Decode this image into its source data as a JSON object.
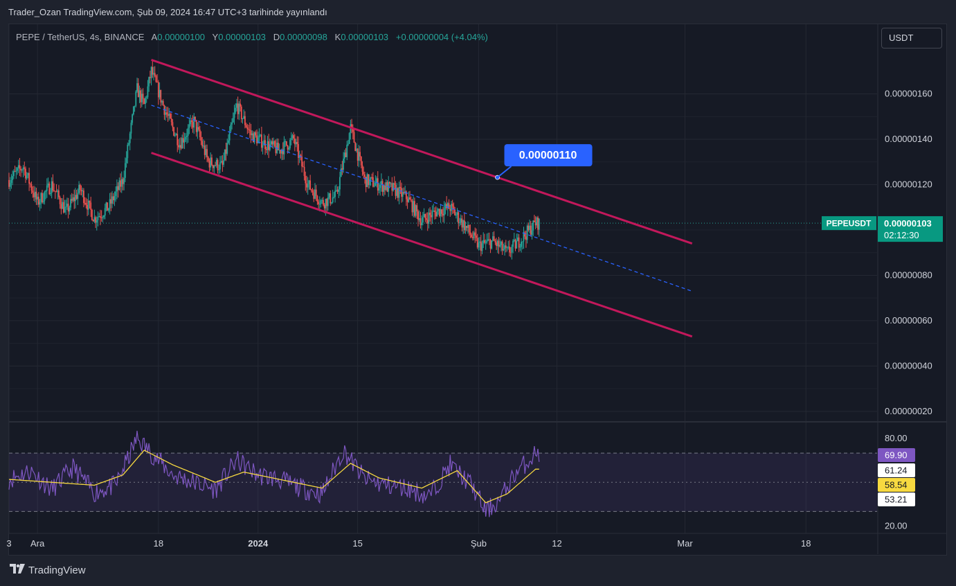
{
  "caption": "Trader_Ozan TradingView.com, Şub 09, 2024 16:47 UTC+3 tarihinde yayınlandı",
  "legend": {
    "symbol": "PEPE / TetherUS, 4s, BINANCE",
    "open_label": "A",
    "open": "0.00000100",
    "high_label": "Y",
    "high": "0.00000103",
    "low_label": "D",
    "low": "0.00000098",
    "close_label": "K",
    "close": "0.00000103",
    "change": "+0.00000004 (+4.04%)"
  },
  "currency_button": "USDT",
  "brand": "TradingView",
  "colors": {
    "up": "#26a69a",
    "down": "#ef5350",
    "channel": "#c2185b",
    "midline": "#2962ff",
    "rsi": "#7e57c2",
    "rsi_ma": "#f7d940",
    "label_blue": "#2962ff",
    "price_tag": "#089981"
  },
  "chart_data": [
    {
      "type": "candlestick",
      "symbol_tag": "PEPEUSDT",
      "last_price": "0.00000103",
      "countdown": "02:12:30",
      "annotation": "0.00000110",
      "y_ticks": [
        "0.00000160",
        "0.00000140",
        "0.00000120",
        "0.00000080",
        "0.00000060",
        "0.00000040",
        "0.00000020"
      ],
      "y_tick_values": [
        1.6,
        1.4,
        1.2,
        0.8,
        0.6,
        0.4,
        0.2
      ],
      "x_ticks": [
        "3",
        "Ara",
        "18",
        "2024",
        "15",
        "Şub",
        "12",
        "Mar",
        "18"
      ],
      "x_tick_dates": [
        "2023-11-27",
        "2023-12-01",
        "2023-12-18",
        "2024-01-01",
        "2024-01-15",
        "2024-02-01",
        "2024-02-12",
        "2024-03-01",
        "2024-03-18"
      ],
      "ylim": [
        0.16,
        1.8
      ],
      "xlim": [
        "2023-11-27",
        "2024-03-28"
      ],
      "price_anchors": [
        [
          "2023-11-27",
          1.22
        ],
        [
          "2023-11-29",
          1.28
        ],
        [
          "2023-12-01",
          1.12
        ],
        [
          "2023-12-03",
          1.2
        ],
        [
          "2023-12-05",
          1.08
        ],
        [
          "2023-12-07",
          1.18
        ],
        [
          "2023-12-09",
          1.05
        ],
        [
          "2023-12-11",
          1.1
        ],
        [
          "2023-12-13",
          1.22
        ],
        [
          "2023-12-15",
          1.62
        ],
        [
          "2023-12-16",
          1.55
        ],
        [
          "2023-12-17",
          1.7
        ],
        [
          "2023-12-19",
          1.52
        ],
        [
          "2023-12-21",
          1.38
        ],
        [
          "2023-12-23",
          1.48
        ],
        [
          "2023-12-25",
          1.3
        ],
        [
          "2023-12-27",
          1.28
        ],
        [
          "2023-12-29",
          1.55
        ],
        [
          "2023-12-31",
          1.42
        ],
        [
          "2024-01-02",
          1.38
        ],
        [
          "2024-01-04",
          1.35
        ],
        [
          "2024-01-06",
          1.4
        ],
        [
          "2024-01-08",
          1.2
        ],
        [
          "2024-01-10",
          1.12
        ],
        [
          "2024-01-12",
          1.15
        ],
        [
          "2024-01-13",
          1.3
        ],
        [
          "2024-01-14",
          1.45
        ],
        [
          "2024-01-16",
          1.22
        ],
        [
          "2024-01-18",
          1.2
        ],
        [
          "2024-01-20",
          1.18
        ],
        [
          "2024-01-22",
          1.14
        ],
        [
          "2024-01-24",
          1.04
        ],
        [
          "2024-01-26",
          1.08
        ],
        [
          "2024-01-28",
          1.1
        ],
        [
          "2024-01-30",
          1.02
        ],
        [
          "2024-02-01",
          0.93
        ],
        [
          "2024-02-03",
          0.95
        ],
        [
          "2024-02-05",
          0.9
        ],
        [
          "2024-02-07",
          0.96
        ],
        [
          "2024-02-09",
          1.03
        ]
      ],
      "channel_upper": [
        [
          "2023-12-17",
          1.75
        ],
        [
          "2024-03-02",
          0.94
        ]
      ],
      "channel_lower": [
        [
          "2023-12-17",
          1.34
        ],
        [
          "2024-03-02",
          0.53
        ]
      ],
      "channel_mid": [
        [
          "2023-12-17",
          1.55
        ],
        [
          "2024-03-02",
          0.73
        ]
      ]
    },
    {
      "type": "line",
      "indicator": "RSI",
      "y_ticks": [
        "80.00",
        "20.00"
      ],
      "y_tick_values": [
        80,
        20
      ],
      "ylim": [
        15,
        90
      ],
      "bands": [
        70,
        50,
        30
      ],
      "rsi_value": "69.90",
      "rsi_ma_value": "58.54",
      "band_upper_value": "61.24",
      "band_lower_value": "53.21",
      "rsi_anchors": [
        [
          "2023-11-27",
          52
        ],
        [
          "2023-11-30",
          58
        ],
        [
          "2023-12-03",
          45
        ],
        [
          "2023-12-06",
          60
        ],
        [
          "2023-12-09",
          43
        ],
        [
          "2023-12-12",
          48
        ],
        [
          "2023-12-15",
          80
        ],
        [
          "2023-12-17",
          70
        ],
        [
          "2023-12-20",
          55
        ],
        [
          "2023-12-23",
          50
        ],
        [
          "2023-12-26",
          45
        ],
        [
          "2023-12-29",
          65
        ],
        [
          "2024-01-01",
          55
        ],
        [
          "2024-01-04",
          52
        ],
        [
          "2024-01-07",
          46
        ],
        [
          "2024-01-10",
          42
        ],
        [
          "2024-01-13",
          72
        ],
        [
          "2024-01-16",
          52
        ],
        [
          "2024-01-19",
          48
        ],
        [
          "2024-01-22",
          46
        ],
        [
          "2024-01-25",
          40
        ],
        [
          "2024-01-28",
          62
        ],
        [
          "2024-01-31",
          48
        ],
        [
          "2024-02-02",
          30
        ],
        [
          "2024-02-04",
          38
        ],
        [
          "2024-02-06",
          55
        ],
        [
          "2024-02-09",
          70
        ]
      ],
      "ma_anchors": [
        [
          "2023-11-27",
          52
        ],
        [
          "2023-12-03",
          50
        ],
        [
          "2023-12-09",
          48
        ],
        [
          "2023-12-13",
          55
        ],
        [
          "2023-12-16",
          72
        ],
        [
          "2023-12-20",
          62
        ],
        [
          "2023-12-26",
          50
        ],
        [
          "2023-12-30",
          57
        ],
        [
          "2024-01-06",
          50
        ],
        [
          "2024-01-10",
          46
        ],
        [
          "2024-01-14",
          63
        ],
        [
          "2024-01-18",
          53
        ],
        [
          "2024-01-24",
          46
        ],
        [
          "2024-01-29",
          58
        ],
        [
          "2024-02-02",
          36
        ],
        [
          "2024-02-05",
          42
        ],
        [
          "2024-02-09",
          59
        ]
      ]
    }
  ]
}
